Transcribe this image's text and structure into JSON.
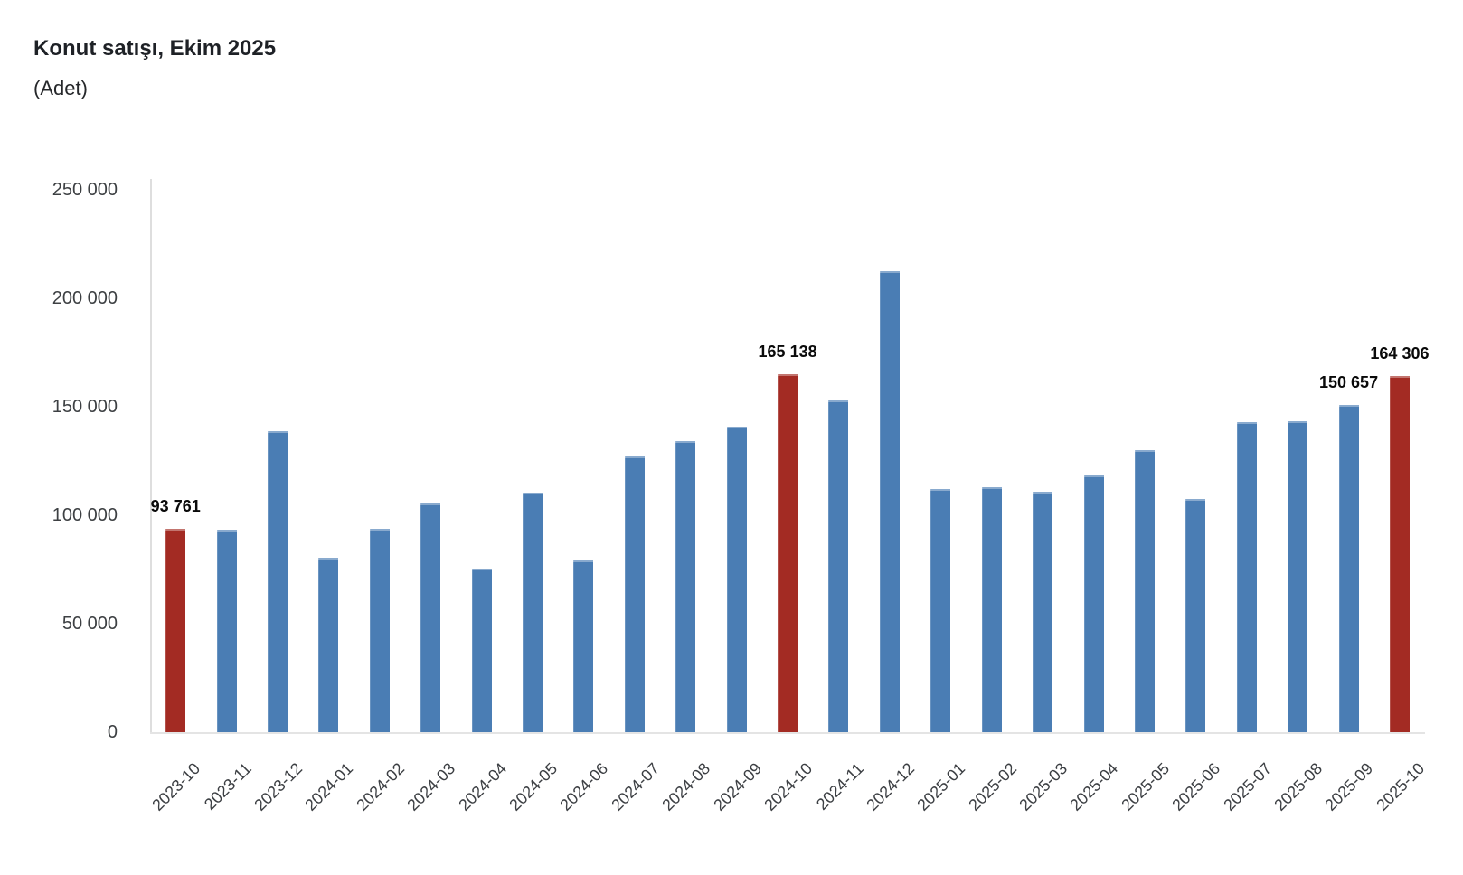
{
  "chart_data": {
    "type": "bar",
    "title": "Konut satışı, Ekim 2025",
    "subtitle": "(Adet)",
    "xlabel": "",
    "ylabel": "Adet",
    "categories": [
      "2023-10",
      "2023-11",
      "2023-12",
      "2024-01",
      "2024-02",
      "2024-03",
      "2024-04",
      "2024-05",
      "2024-06",
      "2024-07",
      "2024-08",
      "2024-09",
      "2024-10",
      "2024-11",
      "2024-12",
      "2025-01",
      "2025-02",
      "2025-03",
      "2025-04",
      "2025-05",
      "2025-06",
      "2025-07",
      "2025-08",
      "2025-09",
      "2025-10"
    ],
    "values": [
      93761,
      93514,
      138577,
      80308,
      93902,
      105476,
      75569,
      110588,
      79313,
      127088,
      134155,
      140919,
      165138,
      153014,
      212637,
      112173,
      112818,
      110795,
      118359,
      130025,
      107723,
      142858,
      143319,
      150657,
      164306
    ],
    "highlighted_indices": [
      0,
      12,
      24
    ],
    "value_labels": [
      {
        "index": 0,
        "text": "93 761"
      },
      {
        "index": 12,
        "text": "165 138"
      },
      {
        "index": 23,
        "text": "150 657"
      },
      {
        "index": 24,
        "text": "164 306"
      }
    ],
    "ylim": [
      0,
      250000
    ],
    "ytick_labels_top_to_bottom": [
      "250 000",
      "200 000",
      "150 000",
      "100 000",
      "50 000",
      "0"
    ],
    "grid": false,
    "legend_position": "none",
    "bar_color": "#4a7db4",
    "highlight_color": "#a32b23",
    "axis_line_color": "#dedede",
    "tick_text_color": "#3d4043",
    "title_color": "#1e2126",
    "value_label_color": "#0a0a0a"
  }
}
